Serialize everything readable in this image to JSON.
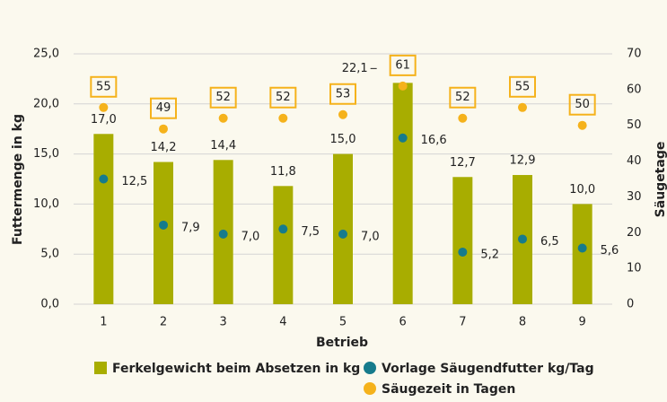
{
  "chart_data": {
    "type": "bar",
    "categories": [
      "1",
      "2",
      "3",
      "4",
      "5",
      "6",
      "7",
      "8",
      "9"
    ],
    "xlabel": "Betrieb",
    "ylabel": "Futtermenge in kg",
    "y2label": "Säugetage",
    "ylim": [
      0,
      25
    ],
    "yticks": [
      {
        "value": 0,
        "label": "0,0"
      },
      {
        "value": 5,
        "label": "5,0"
      },
      {
        "value": 10,
        "label": "10,0"
      },
      {
        "value": 15,
        "label": "15,0"
      },
      {
        "value": 20,
        "label": "20,0"
      },
      {
        "value": 25,
        "label": "25,0"
      }
    ],
    "y2lim": [
      0,
      70
    ],
    "y2ticks": [
      0,
      10,
      20,
      30,
      40,
      50,
      60,
      70
    ],
    "grid": true,
    "legend": "bottom",
    "series": [
      {
        "name": "Ferkelgewicht beim Absetzen in kg",
        "type": "bar",
        "color": "#a8ad00",
        "values": [
          17.0,
          14.2,
          14.4,
          11.8,
          15.0,
          22.1,
          12.7,
          12.9,
          10.0
        ],
        "value_labels": [
          "17,0",
          "14,2",
          "14,4",
          "11,8",
          "15,0",
          "22,1",
          "12,7",
          "12,9",
          "10,0"
        ]
      },
      {
        "name": "Vorlage Säugendfutter kg/Tag",
        "type": "scatter",
        "color": "#167b8c",
        "values": [
          12.5,
          7.9,
          7.0,
          7.5,
          7.0,
          16.6,
          5.2,
          6.5,
          5.6
        ],
        "value_labels": [
          "12,5",
          "7,9",
          "7,0",
          "7,5",
          "7,0",
          "16,6",
          "5,2",
          "6,5",
          "5,6"
        ]
      },
      {
        "name": "Säugezeit in Tagen",
        "type": "scatter",
        "color": "#f5b21b",
        "axis": "y2",
        "values": [
          55,
          49,
          52,
          52,
          53,
          61,
          52,
          55,
          50
        ]
      }
    ]
  }
}
